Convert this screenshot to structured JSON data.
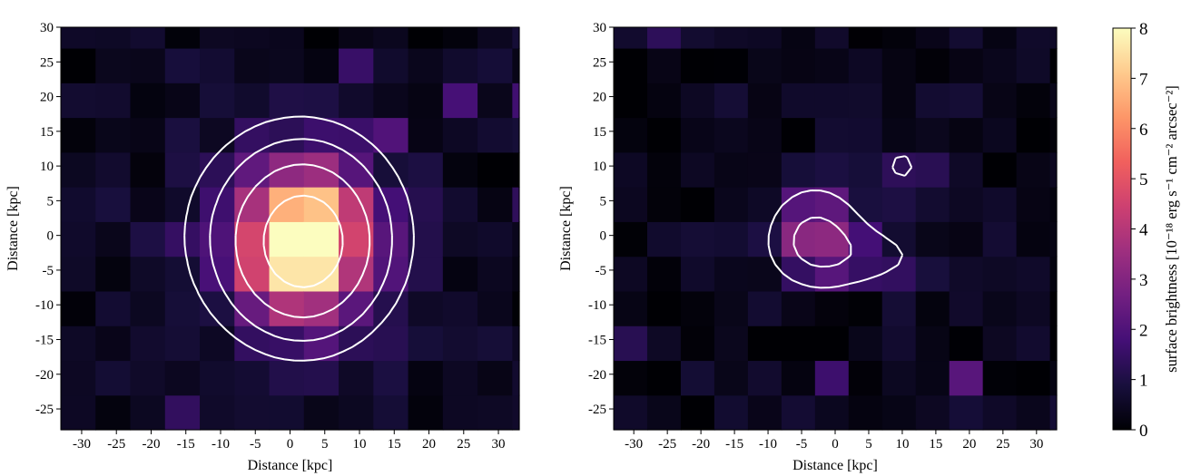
{
  "chart_data": [
    {
      "type": "heatmap",
      "panel": "left",
      "xlabel": "Distance [kpc]",
      "ylabel": "Distance [kpc]",
      "xlim": [
        -33,
        33
      ],
      "ylim": [
        -28,
        30
      ],
      "xticks": [
        -30,
        -25,
        -20,
        -15,
        -10,
        -5,
        0,
        5,
        10,
        15,
        20,
        25,
        30
      ],
      "yticks": [
        -25,
        -20,
        -15,
        -10,
        -5,
        0,
        5,
        10,
        15,
        20,
        25,
        30
      ],
      "xtick_labels": [
        "-30",
        "-25",
        "-20",
        "-15",
        "-10",
        "-5",
        "0",
        "5",
        "10",
        "15",
        "20",
        "25",
        "30"
      ],
      "ytick_labels": [
        "-25",
        "-20",
        "-15",
        "-10",
        "-5",
        "0",
        "5",
        "10",
        "15",
        "20",
        "25",
        "30"
      ],
      "pixel_size_kpc": 5,
      "blobs": [
        {
          "x": 2,
          "y": -1,
          "sx": 5.5,
          "sy": 6.5,
          "amp": 7.0
        },
        {
          "x": 1,
          "y": 0,
          "sx": 11,
          "sy": 11,
          "amp": 2.2
        }
      ],
      "contour_levels": [
        0.8,
        1.5,
        3.0,
        6.0
      ]
    },
    {
      "type": "heatmap",
      "panel": "right",
      "xlabel": "Distance [kpc]",
      "ylabel": "Distance [kpc]",
      "xlim": [
        -33,
        33
      ],
      "ylim": [
        -28,
        30
      ],
      "xticks": [
        -30,
        -25,
        -20,
        -15,
        -10,
        -5,
        0,
        5,
        10,
        15,
        20,
        25,
        30
      ],
      "yticks": [
        -25,
        -20,
        -15,
        -10,
        -5,
        0,
        5,
        10,
        15,
        20,
        25,
        30
      ],
      "xtick_labels": [
        "-30",
        "-25",
        "-20",
        "-15",
        "-10",
        "-5",
        "0",
        "5",
        "10",
        "15",
        "20",
        "25",
        "30"
      ],
      "ytick_labels": [
        "-25",
        "-20",
        "-15",
        "-10",
        "-5",
        "0",
        "5",
        "10",
        "15",
        "20",
        "25",
        "30"
      ],
      "pixel_size_kpc": 5,
      "blobs": [
        {
          "x": -3,
          "y": 0,
          "sx": 4.5,
          "sy": 4.5,
          "amp": 2.8
        },
        {
          "x": 4,
          "y": -3,
          "sx": 7,
          "sy": 3,
          "amp": 1.4
        },
        {
          "x": 10,
          "y": 10,
          "sx": 2.5,
          "sy": 2.5,
          "amp": 1.2
        }
      ],
      "contour_levels": [
        1.0,
        2.5
      ]
    }
  ],
  "colorbar": {
    "label": "surface brightness [10⁻¹⁸ erg s⁻¹ cm⁻² arcsec⁻²]",
    "min": 0,
    "max": 8,
    "ticks": [
      0,
      1,
      2,
      3,
      4,
      5,
      6,
      7,
      8
    ],
    "tick_labels": [
      "0",
      "1",
      "2",
      "3",
      "4",
      "5",
      "6",
      "7",
      "8"
    ],
    "colormap": "magma",
    "stops": [
      "#000004",
      "#180f3d",
      "#440f76",
      "#721f81",
      "#9e2f7f",
      "#cd4071",
      "#f1605d",
      "#fd9668",
      "#feca8d",
      "#fcfdbf"
    ]
  }
}
